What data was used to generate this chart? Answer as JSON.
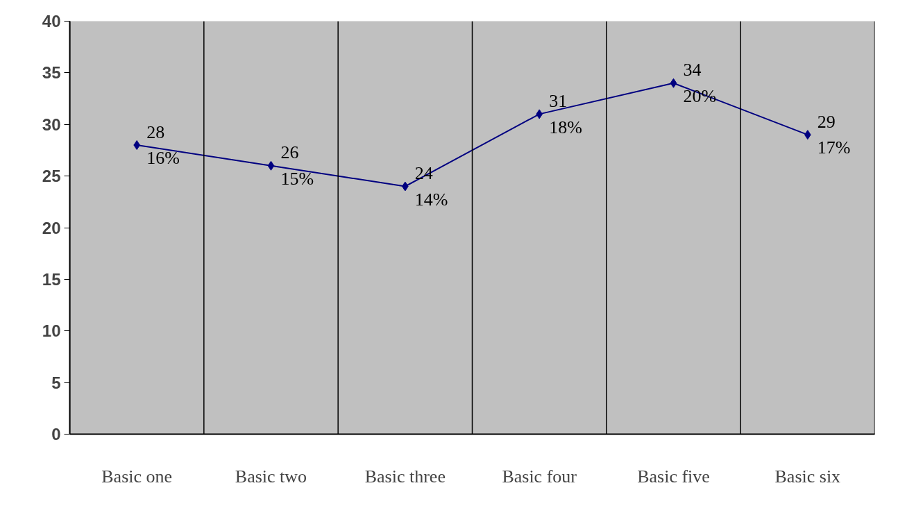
{
  "chart_data": {
    "type": "line",
    "categories": [
      "Basic one",
      "Basic two",
      "Basic three",
      "Basic four",
      "Basic five",
      "Basic six"
    ],
    "series": [
      {
        "color": "#000080",
        "values": [
          28,
          26,
          24,
          31,
          34,
          29
        ],
        "value_labels": [
          "28\n16%",
          "26\n15%",
          "24\n14%",
          "31\n18%",
          "34\n20%",
          "29\n17%"
        ]
      }
    ],
    "ylim": [
      0,
      40
    ],
    "yticks": [
      0,
      5,
      10,
      15,
      20,
      25,
      30,
      35,
      40
    ],
    "grid": "x",
    "marker": "diamond",
    "line_style": "solid"
  }
}
